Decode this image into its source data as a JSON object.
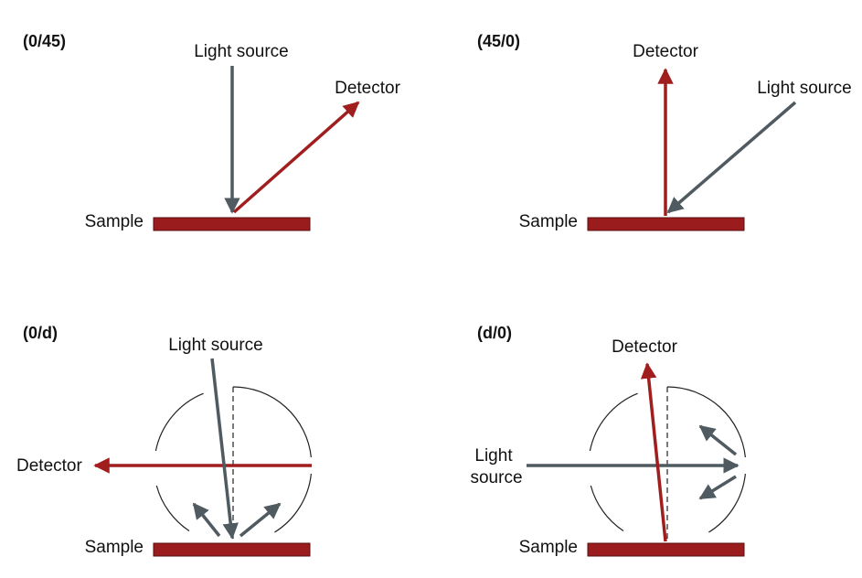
{
  "panels": {
    "p0_45": {
      "title": "(0/45)",
      "light_source": "Light source",
      "detector": "Detector",
      "sample": "Sample"
    },
    "p45_0": {
      "title": "(45/0)",
      "light_source": "Light source",
      "detector": "Detector",
      "sample": "Sample"
    },
    "p0_d": {
      "title": "(0/d)",
      "light_source": "Light source",
      "detector": "Detector",
      "sample": "Sample"
    },
    "pd_0": {
      "title": "(d/0)",
      "light_source_line1": "Light",
      "light_source_line2": "source",
      "detector": "Detector",
      "sample": "Sample"
    }
  },
  "colors": {
    "sample": "#9b1c1c",
    "detector_ray": "#a01e1e",
    "light_ray": "#4f5a61",
    "sphere": "#222222"
  }
}
